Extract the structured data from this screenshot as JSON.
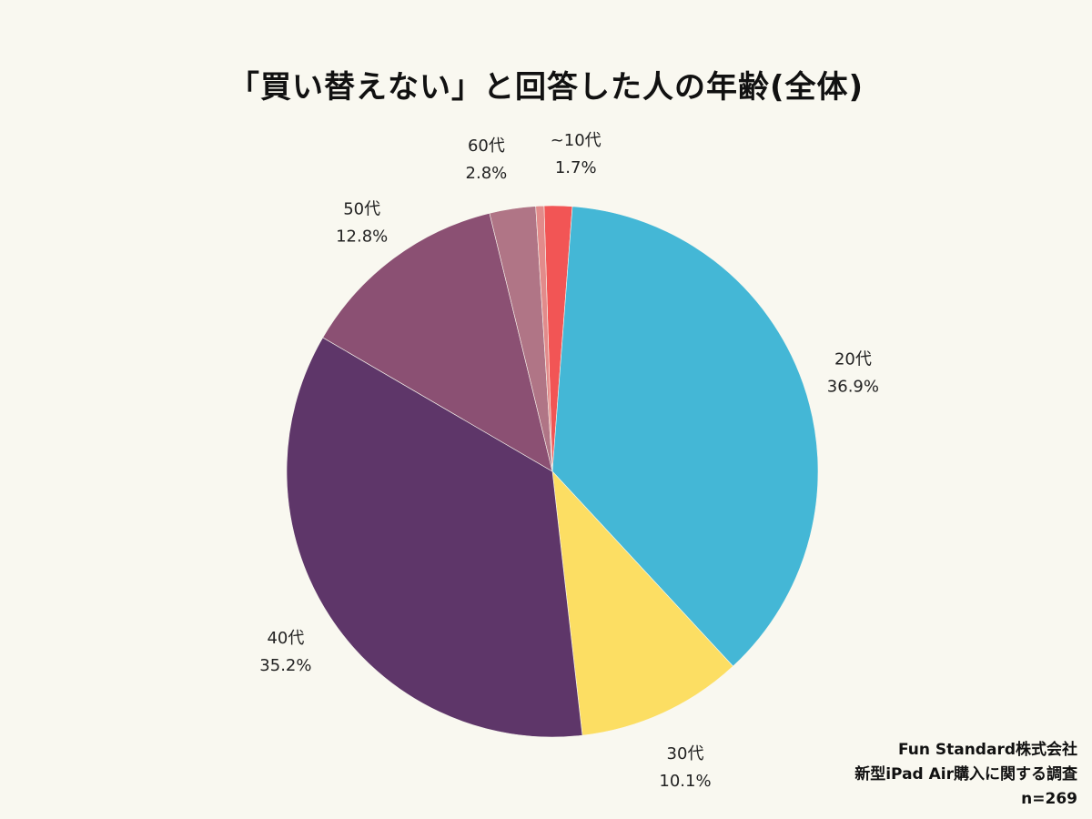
{
  "chart_data": {
    "type": "pie",
    "title": "「買い替えない」と回答した人の年齢(全体)",
    "slices": [
      {
        "label": "~10代",
        "percent_text": "1.7%",
        "value": 1.7,
        "color": "#f25555"
      },
      {
        "label": "20代",
        "percent_text": "36.9%",
        "value": 36.9,
        "color": "#44b7d6"
      },
      {
        "label": "30代",
        "percent_text": "10.1%",
        "value": 10.1,
        "color": "#fcde63"
      },
      {
        "label": "40代",
        "percent_text": "35.2%",
        "value": 35.2,
        "color": "#5e3669"
      },
      {
        "label": "50代",
        "percent_text": "12.8%",
        "value": 12.8,
        "color": "#8b5073"
      },
      {
        "label": "60代",
        "percent_text": "2.8%",
        "value": 2.8,
        "color": "#b07586"
      },
      {
        "label": "",
        "percent_text": "",
        "value": 0.5,
        "color": "#e28b8b"
      }
    ]
  },
  "footer": {
    "company": "Fun Standard株式会社",
    "survey": "新型iPad Air購入に関する調査",
    "sample": "n=269"
  },
  "background_color": "#f9f8f0"
}
